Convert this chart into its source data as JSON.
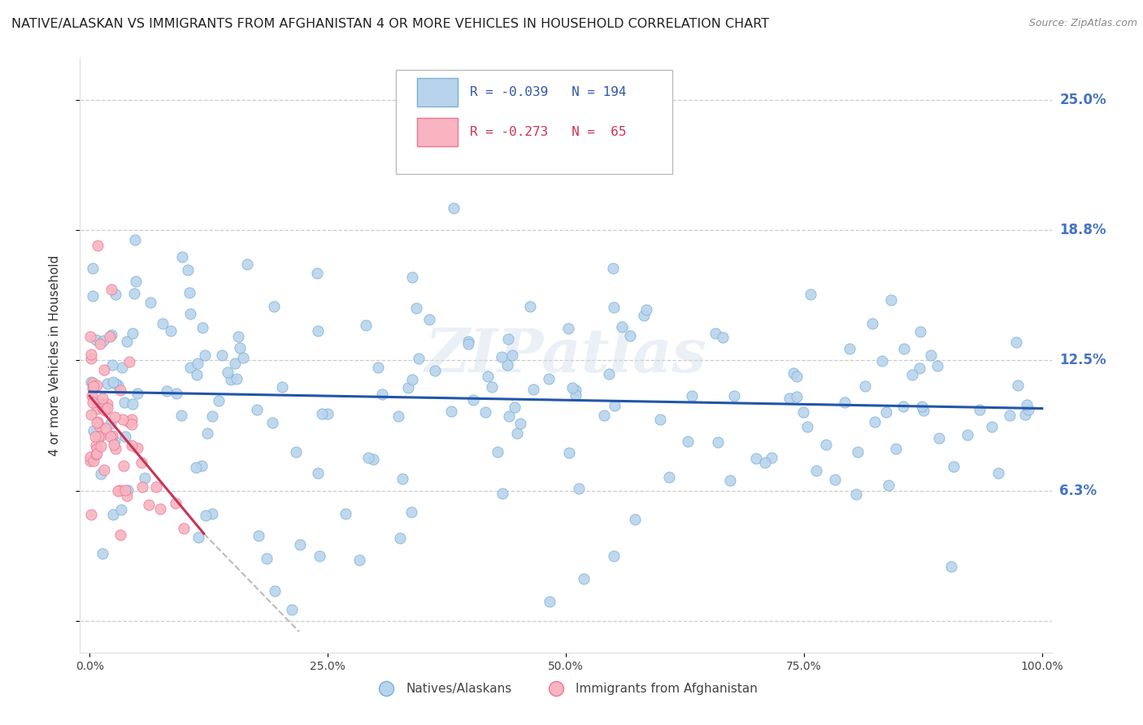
{
  "title": "NATIVE/ALASKAN VS IMMIGRANTS FROM AFGHANISTAN 4 OR MORE VEHICLES IN HOUSEHOLD CORRELATION CHART",
  "source": "Source: ZipAtlas.com",
  "ylabel": "4 or more Vehicles in Household",
  "xlabel": "",
  "xlim": [
    -1,
    101
  ],
  "ylim": [
    -1.5,
    27
  ],
  "yticks": [
    0,
    6.25,
    12.5,
    18.75,
    25.0
  ],
  "ytick_labels": [
    "",
    "6.3%",
    "12.5%",
    "18.8%",
    "25.0%"
  ],
  "xtick_labels": [
    "0.0%",
    "25.0%",
    "50.0%",
    "75.0%",
    "100.0%"
  ],
  "xticks": [
    0,
    25,
    50,
    75,
    100
  ],
  "series1": {
    "label": "Natives/Alaskans",
    "R": -0.039,
    "N": 194,
    "color": "#b8d4ec",
    "edge_color": "#7ab0d8",
    "marker_size": 90
  },
  "series2": {
    "label": "Immigrants from Afghanistan",
    "R": -0.273,
    "N": 65,
    "color": "#f8b4c0",
    "edge_color": "#e87898",
    "marker_size": 90
  },
  "trend1_color": "#2255aa",
  "trend2_color": "#cc3355",
  "trend2_dash_color": "#bbbbbb",
  "watermark": "ZIPatlas",
  "background_color": "#ffffff",
  "grid_color": "#cccccc",
  "title_color": "#222222",
  "right_label_color": "#4472c4",
  "title_fontsize": 11.5,
  "source_fontsize": 9,
  "legend_R1": "R = -0.039",
  "legend_N1": "N = 194",
  "legend_R2": "R = -0.273",
  "legend_N2": "N =  65"
}
